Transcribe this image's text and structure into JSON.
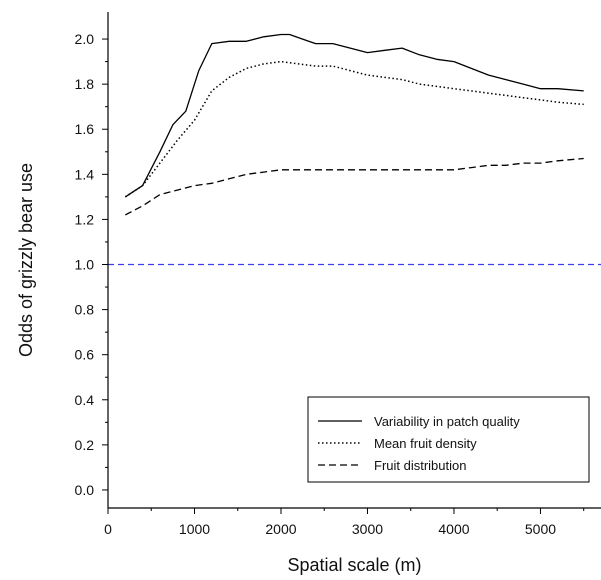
{
  "chart_data": {
    "type": "line",
    "xlabel": "Spatial scale (m)",
    "ylabel": "Odds of grizzly bear use",
    "xlim": [
      0,
      5700
    ],
    "ylim": [
      -0.08,
      2.12
    ],
    "xticks": [
      0,
      1000,
      2000,
      3000,
      4000,
      5000
    ],
    "xtick_labels": [
      "0",
      "1000",
      "2000",
      "3000",
      "4000",
      "5000"
    ],
    "yticks": [
      0.0,
      0.2,
      0.4,
      0.6,
      0.8,
      1.0,
      1.2,
      1.4,
      1.6,
      1.8,
      2.0
    ],
    "ytick_labels": [
      "0.0",
      "0.2",
      "0.4",
      "0.6",
      "0.8",
      "1.0",
      "1.2",
      "1.4",
      "1.6",
      "1.8",
      "2.0"
    ],
    "grid": false,
    "legend_position": "bottom-right",
    "reference_line": {
      "y": 1.0,
      "color": "#3d3df0",
      "style": "dashed"
    },
    "series": [
      {
        "name": "Variability in patch quality",
        "style": "solid",
        "color": "#000000",
        "x": [
          200,
          400,
          600,
          750,
          900,
          1050,
          1200,
          1400,
          1600,
          1800,
          2000,
          2100,
          2250,
          2400,
          2600,
          2800,
          3000,
          3200,
          3400,
          3600,
          3800,
          4000,
          4200,
          4400,
          4600,
          4800,
          5000,
          5200,
          5500
        ],
        "y": [
          1.3,
          1.35,
          1.5,
          1.62,
          1.68,
          1.86,
          1.98,
          1.99,
          1.99,
          2.01,
          2.02,
          2.02,
          2.0,
          1.98,
          1.98,
          1.96,
          1.94,
          1.95,
          1.96,
          1.93,
          1.91,
          1.9,
          1.87,
          1.84,
          1.82,
          1.8,
          1.78,
          1.78,
          1.77
        ]
      },
      {
        "name": "Mean fruit density",
        "style": "dotted",
        "color": "#000000",
        "x": [
          200,
          400,
          600,
          800,
          1000,
          1200,
          1400,
          1600,
          1800,
          2000,
          2200,
          2400,
          2600,
          2800,
          3000,
          3200,
          3400,
          3600,
          3800,
          4000,
          4200,
          4400,
          4600,
          4800,
          5000,
          5200,
          5500
        ],
        "y": [
          1.3,
          1.35,
          1.45,
          1.55,
          1.64,
          1.77,
          1.83,
          1.87,
          1.89,
          1.9,
          1.89,
          1.88,
          1.88,
          1.86,
          1.84,
          1.83,
          1.82,
          1.8,
          1.79,
          1.78,
          1.77,
          1.76,
          1.75,
          1.74,
          1.73,
          1.72,
          1.71
        ]
      },
      {
        "name": "Fruit distribution",
        "style": "dashed",
        "color": "#000000",
        "x": [
          200,
          400,
          600,
          800,
          1000,
          1200,
          1400,
          1600,
          1800,
          2000,
          2200,
          2400,
          2600,
          2800,
          3000,
          3200,
          3400,
          3600,
          3800,
          4000,
          4200,
          4400,
          4600,
          4800,
          5000,
          5200,
          5500
        ],
        "y": [
          1.22,
          1.26,
          1.31,
          1.33,
          1.35,
          1.36,
          1.38,
          1.4,
          1.41,
          1.42,
          1.42,
          1.42,
          1.42,
          1.42,
          1.42,
          1.42,
          1.42,
          1.42,
          1.42,
          1.42,
          1.43,
          1.44,
          1.44,
          1.45,
          1.45,
          1.46,
          1.47
        ]
      }
    ]
  }
}
